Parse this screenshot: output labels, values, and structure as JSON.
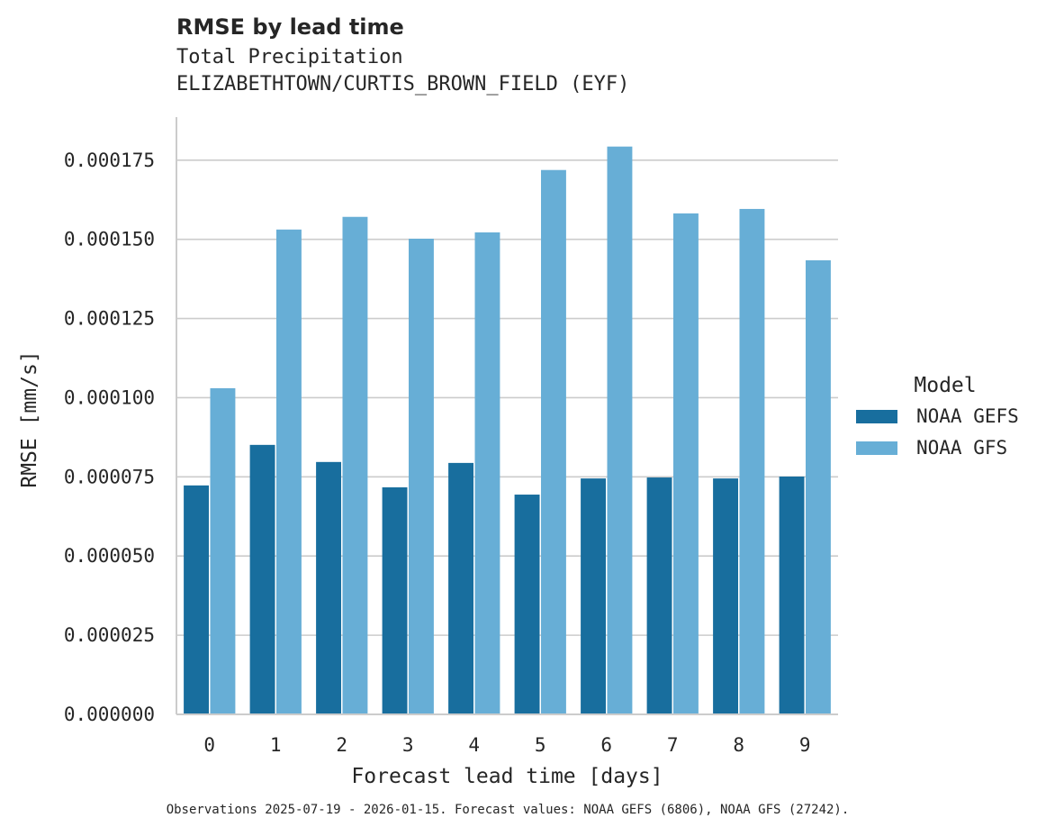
{
  "chart_data": {
    "type": "bar",
    "title": "RMSE by lead time",
    "subtitle_lines": [
      "Total Precipitation",
      "ELIZABETHTOWN/CURTIS_BROWN_FIELD (EYF)"
    ],
    "xlabel": "Forecast lead time [days]",
    "ylabel": "RMSE [mm/s]",
    "categories": [
      "0",
      "1",
      "2",
      "3",
      "4",
      "5",
      "6",
      "7",
      "8",
      "9"
    ],
    "series": [
      {
        "name": "NOAA GEFS",
        "color": "#186e9e",
        "values": [
          7.23e-05,
          8.51e-05,
          7.97e-05,
          7.17e-05,
          7.94e-05,
          6.94e-05,
          7.45e-05,
          7.48e-05,
          7.45e-05,
          7.51e-05
        ]
      },
      {
        "name": "NOAA GFS",
        "color": "#67aed6",
        "values": [
          0.000103,
          0.0001531,
          0.0001571,
          0.0001502,
          0.0001522,
          0.0001719,
          0.0001793,
          0.0001582,
          0.0001596,
          0.0001434
        ]
      }
    ],
    "ylim": [
      0,
      0.0001886
    ],
    "yticks": [
      "0.000000",
      "0.000025",
      "0.000050",
      "0.000075",
      "0.000100",
      "0.000125",
      "0.000150",
      "0.000175"
    ],
    "grid": true,
    "legend_title": "Model",
    "legend_position": "right",
    "footer": "Observations 2025-07-19 - 2026-01-15. Forecast values: NOAA GEFS (6806), NOAA GFS (27242)."
  }
}
